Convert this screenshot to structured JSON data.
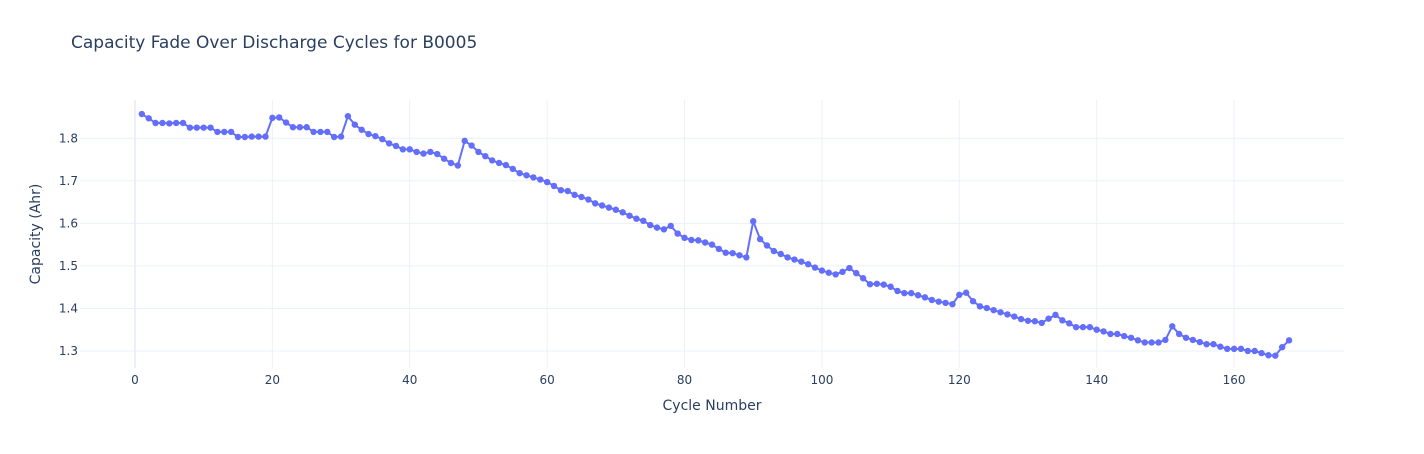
{
  "chart_data": {
    "type": "line",
    "title": "Capacity Fade Over Discharge Cycles for B0005",
    "xlabel": "Cycle Number",
    "ylabel": "Capacity (Ahr)",
    "xlim": [
      -8,
      176
    ],
    "ylim": [
      1.26,
      1.89
    ],
    "xticks": [
      0,
      20,
      40,
      60,
      80,
      100,
      120,
      140,
      160
    ],
    "yticks": [
      1.3,
      1.4,
      1.5,
      1.6,
      1.7,
      1.8
    ],
    "grid": true,
    "legend": "none",
    "colors": {
      "series": "#636efa",
      "grid": "#ebf0f8",
      "zero_line": "#ebf0f8",
      "text": "#2a3f5f"
    },
    "series": [
      {
        "x": [
          1,
          2,
          3,
          4,
          5,
          6,
          7,
          8,
          9,
          10,
          11,
          12,
          13,
          14,
          15,
          16,
          17,
          18,
          19,
          20,
          21,
          22,
          23,
          24,
          25,
          26,
          27,
          28,
          29,
          30,
          31,
          32,
          33,
          34,
          35,
          36,
          37,
          38,
          39,
          40,
          41,
          42,
          43,
          44,
          45,
          46,
          47,
          48,
          49,
          50,
          51,
          52,
          53,
          54,
          55,
          56,
          57,
          58,
          59,
          60,
          61,
          62,
          63,
          64,
          65,
          66,
          67,
          68,
          69,
          70,
          71,
          72,
          73,
          74,
          75,
          76,
          77,
          78,
          79,
          80,
          81,
          82,
          83,
          84,
          85,
          86,
          87,
          88,
          89,
          90,
          91,
          92,
          93,
          94,
          95,
          96,
          97,
          98,
          99,
          100,
          101,
          102,
          103,
          104,
          105,
          106,
          107,
          108,
          109,
          110,
          111,
          112,
          113,
          114,
          115,
          116,
          117,
          118,
          119,
          120,
          121,
          122,
          123,
          124,
          125,
          126,
          127,
          128,
          129,
          130,
          131,
          132,
          133,
          134,
          135,
          136,
          137,
          138,
          139,
          140,
          141,
          142,
          143,
          144,
          145,
          146,
          147,
          148,
          149,
          150,
          151,
          152,
          153,
          154,
          155,
          156,
          157,
          158,
          159,
          160,
          161,
          162,
          163,
          164,
          165,
          166,
          167,
          168
        ],
        "y": [
          1.857,
          1.847,
          1.836,
          1.836,
          1.835,
          1.836,
          1.836,
          1.825,
          1.825,
          1.825,
          1.825,
          1.815,
          1.815,
          1.815,
          1.803,
          1.803,
          1.804,
          1.804,
          1.804,
          1.848,
          1.849,
          1.837,
          1.826,
          1.826,
          1.826,
          1.815,
          1.815,
          1.815,
          1.803,
          1.804,
          1.852,
          1.832,
          1.82,
          1.81,
          1.805,
          1.798,
          1.788,
          1.782,
          1.774,
          1.774,
          1.768,
          1.764,
          1.768,
          1.763,
          1.752,
          1.742,
          1.736,
          1.794,
          1.783,
          1.768,
          1.758,
          1.748,
          1.742,
          1.737,
          1.728,
          1.718,
          1.713,
          1.708,
          1.703,
          1.697,
          1.688,
          1.678,
          1.676,
          1.667,
          1.662,
          1.656,
          1.647,
          1.642,
          1.637,
          1.632,
          1.626,
          1.618,
          1.611,
          1.606,
          1.596,
          1.59,
          1.586,
          1.594,
          1.576,
          1.566,
          1.561,
          1.56,
          1.555,
          1.55,
          1.54,
          1.531,
          1.53,
          1.525,
          1.52,
          1.605,
          1.563,
          1.548,
          1.535,
          1.528,
          1.52,
          1.515,
          1.51,
          1.504,
          1.496,
          1.489,
          1.484,
          1.48,
          1.486,
          1.495,
          1.483,
          1.471,
          1.457,
          1.458,
          1.456,
          1.451,
          1.441,
          1.436,
          1.436,
          1.431,
          1.426,
          1.42,
          1.416,
          1.413,
          1.41,
          1.432,
          1.437,
          1.417,
          1.405,
          1.401,
          1.396,
          1.391,
          1.386,
          1.381,
          1.375,
          1.371,
          1.37,
          1.366,
          1.376,
          1.385,
          1.372,
          1.365,
          1.356,
          1.356,
          1.356,
          1.35,
          1.346,
          1.34,
          1.34,
          1.335,
          1.331,
          1.325,
          1.32,
          1.32,
          1.32,
          1.326,
          1.358,
          1.34,
          1.331,
          1.326,
          1.321,
          1.316,
          1.316,
          1.31,
          1.305,
          1.305,
          1.305,
          1.3,
          1.3,
          1.295,
          1.29,
          1.289,
          1.309,
          1.325
        ]
      }
    ]
  }
}
